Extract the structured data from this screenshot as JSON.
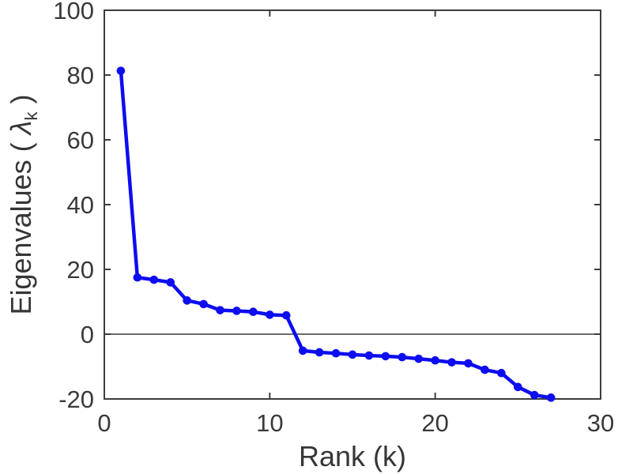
{
  "figure": {
    "background": "#ffffff",
    "x_axis_label": "Rank (k)",
    "y_axis_label": {
      "prefix": "Eigenvalues ( ",
      "symbol": "λ",
      "subscript": "k",
      "suffix": " )"
    }
  },
  "chart_data": {
    "type": "line",
    "title": "",
    "xlabel": "Rank (k)",
    "ylabel": "Eigenvalues ( lambda_k )",
    "x": [
      1,
      2,
      3,
      4,
      5,
      6,
      7,
      8,
      9,
      10,
      11,
      12,
      13,
      14,
      15,
      16,
      17,
      18,
      19,
      20,
      21,
      22,
      23,
      24,
      25,
      26,
      27
    ],
    "y": [
      81.3,
      17.5,
      16.8,
      16.0,
      10.4,
      9.3,
      7.4,
      7.2,
      6.9,
      6.0,
      5.8,
      -5.1,
      -5.6,
      -5.9,
      -6.3,
      -6.6,
      -6.8,
      -7.1,
      -7.6,
      -8.1,
      -8.7,
      -9.0,
      -11.0,
      -12.0,
      -16.3,
      -18.8,
      -19.6
    ],
    "xlim": [
      0,
      30
    ],
    "ylim": [
      -20,
      100
    ],
    "x_ticks": [
      0,
      10,
      20,
      30
    ],
    "y_ticks": [
      -20,
      0,
      20,
      40,
      60,
      80,
      100
    ],
    "grid": false,
    "legend": null,
    "marker": "circle",
    "zero_line": true,
    "line_color": "#0d0df0",
    "axis_color": "#3d3d3d",
    "zero_line_color": "#6b6b6b",
    "tick_label_color": "#3a3a3a"
  }
}
